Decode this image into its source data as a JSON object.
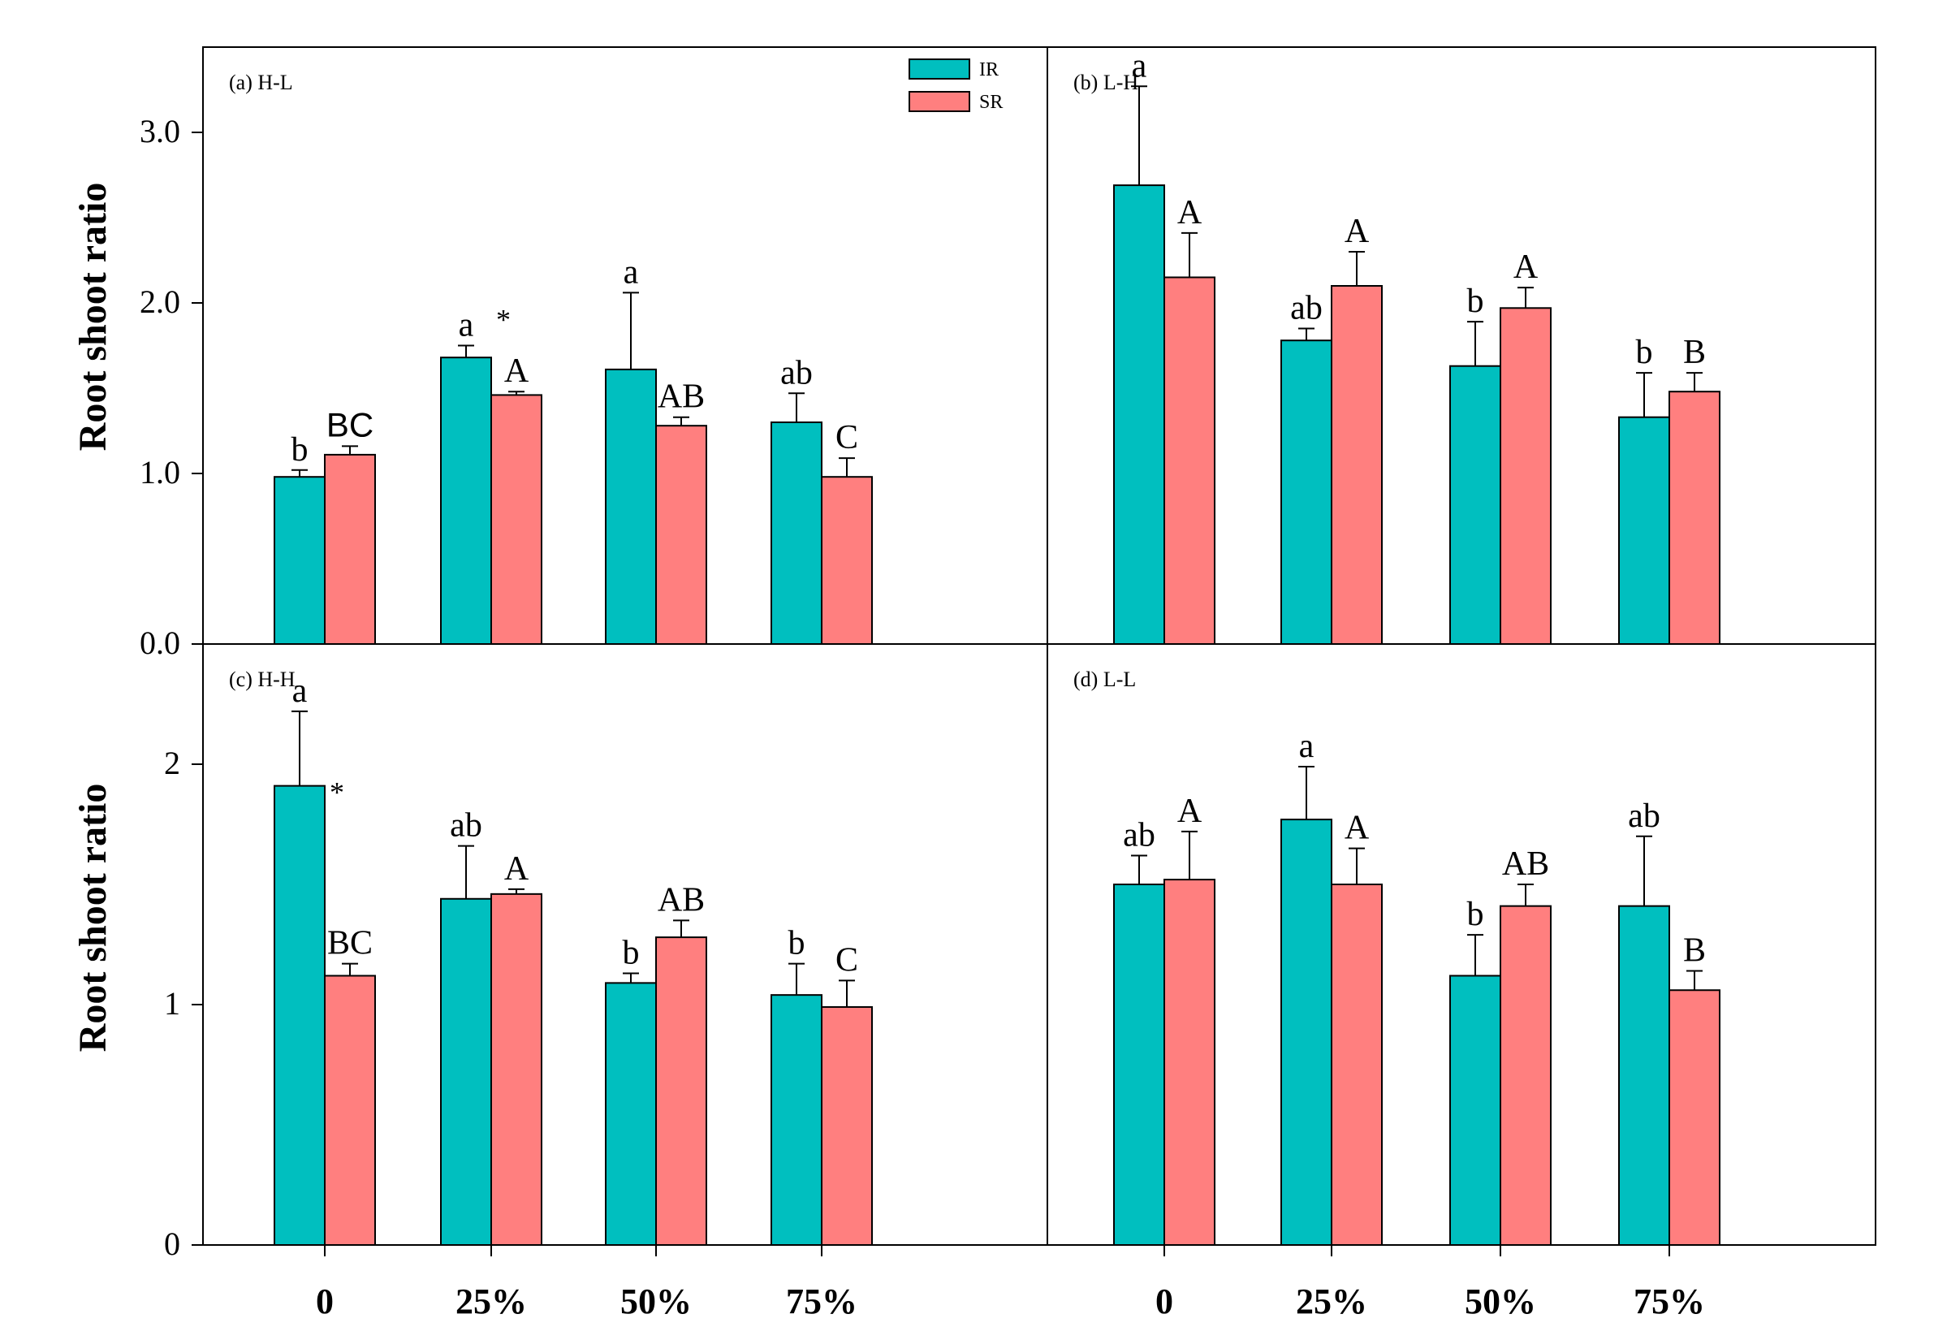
{
  "y_axis_label": "Root shoot ratio",
  "colors": {
    "IR": "#00BFBF",
    "SR": "#FF7F7F",
    "outline": "#000000"
  },
  "legend": {
    "entries": [
      "IR",
      "SR"
    ],
    "placement": "top-right of panel (a)"
  },
  "chart_data": [
    {
      "type": "bar",
      "panel_label": "(a) H-L",
      "categories": [
        "0",
        "25%",
        "50%",
        "75%"
      ],
      "ylim": [
        0,
        3.5
      ],
      "yticks": [
        "0.0",
        "1.0",
        "2.0",
        "3.0"
      ],
      "series": [
        {
          "name": "IR",
          "values": [
            0.98,
            1.68,
            1.61,
            1.3
          ],
          "errors": [
            0.04,
            0.07,
            0.45,
            0.17
          ],
          "letters": [
            "b",
            "a",
            "a",
            "ab"
          ]
        },
        {
          "name": "SR",
          "values": [
            1.11,
            1.46,
            1.28,
            0.98
          ],
          "errors": [
            0.05,
            0.02,
            0.05,
            0.11
          ],
          "letters": [
            "BC",
            "A",
            "AB",
            "C"
          ]
        }
      ],
      "asterisks": [
        "25%"
      ]
    },
    {
      "type": "bar",
      "panel_label": "(b) L-H",
      "categories": [
        "0",
        "25%",
        "50%",
        "75%"
      ],
      "ylim": [
        0,
        3.5
      ],
      "yticks": [],
      "series": [
        {
          "name": "IR",
          "values": [
            2.69,
            1.78,
            1.63,
            1.33
          ],
          "errors": [
            0.58,
            0.07,
            0.26,
            0.26
          ],
          "letters": [
            "a",
            "ab",
            "b",
            "b"
          ]
        },
        {
          "name": "SR",
          "values": [
            2.15,
            2.1,
            1.97,
            1.48
          ],
          "errors": [
            0.26,
            0.2,
            0.12,
            0.11
          ],
          "letters": [
            "A",
            "A",
            "A",
            "B"
          ]
        }
      ],
      "asterisks": []
    },
    {
      "type": "bar",
      "panel_label": "(c) H-H",
      "categories": [
        "0",
        "25%",
        "50%",
        "75%"
      ],
      "ylim": [
        0,
        2.5
      ],
      "yticks": [
        "0",
        "1",
        "2"
      ],
      "series": [
        {
          "name": "IR",
          "values": [
            1.91,
            1.44,
            1.09,
            1.04
          ],
          "errors": [
            0.31,
            0.22,
            0.04,
            0.13
          ],
          "letters": [
            "a",
            "ab",
            "b",
            "b"
          ]
        },
        {
          "name": "SR",
          "values": [
            1.12,
            1.46,
            1.28,
            0.99
          ],
          "errors": [
            0.05,
            0.02,
            0.07,
            0.11
          ],
          "letters": [
            "BC",
            "A",
            "AB",
            "C"
          ]
        }
      ],
      "asterisks": [
        "0"
      ]
    },
    {
      "type": "bar",
      "panel_label": "(d) L-L",
      "categories": [
        "0",
        "25%",
        "50%",
        "75%"
      ],
      "ylim": [
        0,
        2.5
      ],
      "yticks": [],
      "series": [
        {
          "name": "IR",
          "values": [
            1.5,
            1.77,
            1.12,
            1.41
          ],
          "errors": [
            0.12,
            0.22,
            0.17,
            0.29
          ],
          "letters": [
            "ab",
            "a",
            "b",
            "ab"
          ]
        },
        {
          "name": "SR",
          "values": [
            1.52,
            1.5,
            1.41,
            1.06
          ],
          "errors": [
            0.2,
            0.15,
            0.09,
            0.08
          ],
          "letters": [
            "A",
            "A",
            "AB",
            "B"
          ]
        }
      ],
      "asterisks": []
    }
  ]
}
